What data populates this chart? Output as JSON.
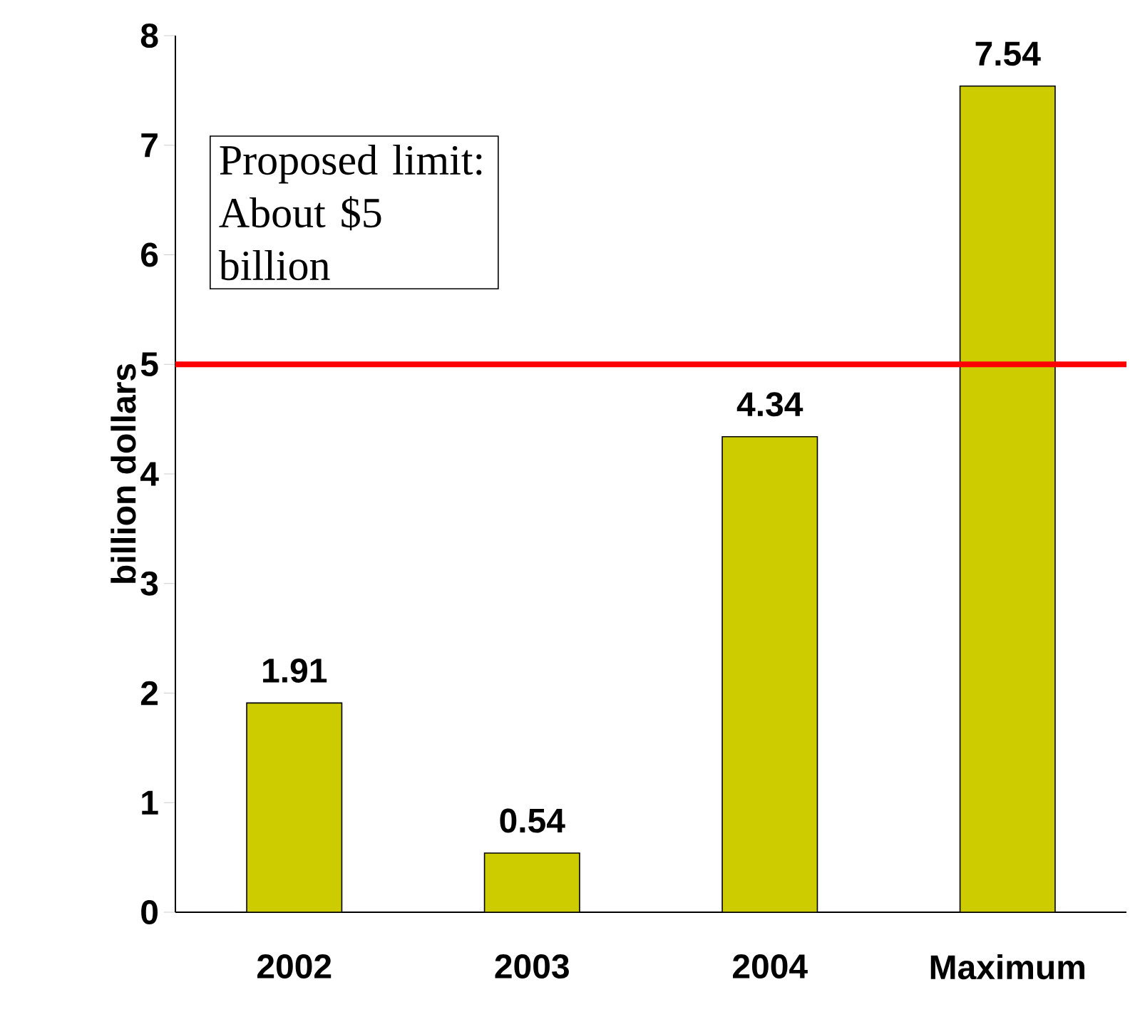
{
  "chart_data": {
    "type": "bar",
    "ylabel": "billion dollars",
    "categories": [
      "2002",
      "2003",
      "2004",
      "Maximum"
    ],
    "values": [
      1.91,
      0.54,
      4.34,
      7.54
    ],
    "color": "#cccc00",
    "ylim": [
      0,
      8
    ],
    "yticks": [
      0,
      1,
      2,
      3,
      4,
      5,
      6,
      7,
      8
    ],
    "data_labels": true,
    "ref_lines": [
      {
        "axis": "y",
        "value": 5,
        "label": "Proposed limit: About $5 billion",
        "color": "#ff0000"
      }
    ]
  }
}
